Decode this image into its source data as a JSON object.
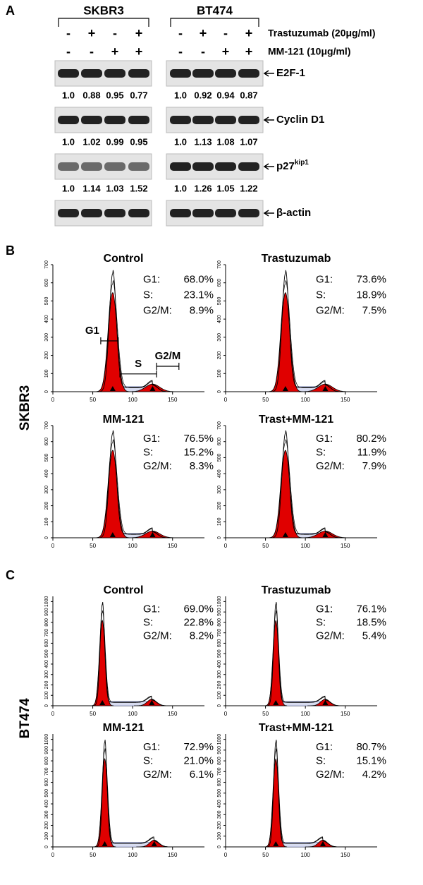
{
  "panel_a": {
    "label": "A",
    "cell_lines": [
      "SKBR3",
      "BT474"
    ],
    "treatments": [
      {
        "name": "Trastuzumab (20μg/ml)",
        "signs": [
          "-",
          "+",
          "-",
          "+"
        ]
      },
      {
        "name": "MM-121 (10μg/ml)",
        "signs": [
          "-",
          "-",
          "+",
          "+"
        ]
      }
    ],
    "blots": [
      {
        "name": "E2F-1",
        "values": [
          [
            "1.0",
            "0.88",
            "0.95",
            "0.77"
          ],
          [
            "1.0",
            "0.92",
            "0.94",
            "0.87"
          ]
        ]
      },
      {
        "name": "Cyclin D1",
        "values": [
          [
            "1.0",
            "1.02",
            "0.99",
            "0.95"
          ],
          [
            "1.0",
            "1.13",
            "1.08",
            "1.07"
          ]
        ]
      },
      {
        "name": "p27",
        "sup": "kip1",
        "values": [
          [
            "1.0",
            "1.14",
            "1.03",
            "1.52"
          ],
          [
            "1.0",
            "1.26",
            "1.05",
            "1.22"
          ]
        ]
      },
      {
        "name": "β-actin"
      }
    ]
  },
  "panel_b": {
    "label": "B",
    "row_label": "SKBR3",
    "stat_labels": [
      "G1:",
      "S:",
      "G2/M:"
    ],
    "gates": [
      "G1",
      "S",
      "G2/M"
    ],
    "xlim": [
      0,
      190
    ],
    "xticks": [
      0,
      50,
      100,
      150
    ],
    "ylim": [
      0,
      700
    ],
    "yticks": [
      0,
      100,
      200,
      300,
      400,
      500,
      600,
      700
    ],
    "plots": [
      {
        "title": "Control",
        "stats": [
          "68.0%",
          "23.1%",
          "8.9%"
        ],
        "markers": [
          75,
          125
        ]
      },
      {
        "title": "Trastuzumab",
        "stats": [
          "73.6%",
          "18.9%",
          "7.5%"
        ],
        "markers": [
          75,
          125
        ]
      },
      {
        "title": "MM-121",
        "stats": [
          "76.5%",
          "15.2%",
          "8.3%"
        ],
        "markers": [
          75,
          125
        ]
      },
      {
        "title": "Trast+MM-121",
        "stats": [
          "80.2%",
          "11.9%",
          "7.9%"
        ],
        "markers": [
          75,
          125
        ]
      }
    ]
  },
  "panel_c": {
    "label": "C",
    "row_label": "BT474",
    "stat_labels": [
      "G1:",
      "S:",
      "G2/M:"
    ],
    "xlim": [
      0,
      190
    ],
    "xticks": [
      0,
      50,
      100,
      150
    ],
    "ylim": [
      0,
      1050
    ],
    "yticks": [
      0,
      100,
      200,
      300,
      400,
      500,
      600,
      700,
      800,
      900,
      1000
    ],
    "plots": [
      {
        "title": "Control",
        "stats": [
          "69.0%",
          "22.8%",
          "8.2%"
        ],
        "markers": [
          62,
          124
        ]
      },
      {
        "title": "Trastuzumab",
        "stats": [
          "76.1%",
          "18.5%",
          "5.4%"
        ],
        "markers": [
          63,
          125
        ]
      },
      {
        "title": "MM-121",
        "stats": [
          "72.9%",
          "21.0%",
          "6.1%"
        ],
        "markers": [
          65,
          127
        ]
      },
      {
        "title": "Trast+MM-121",
        "stats": [
          "80.7%",
          "15.1%",
          "4.2%"
        ],
        "markers": [
          63,
          122
        ]
      }
    ]
  }
}
